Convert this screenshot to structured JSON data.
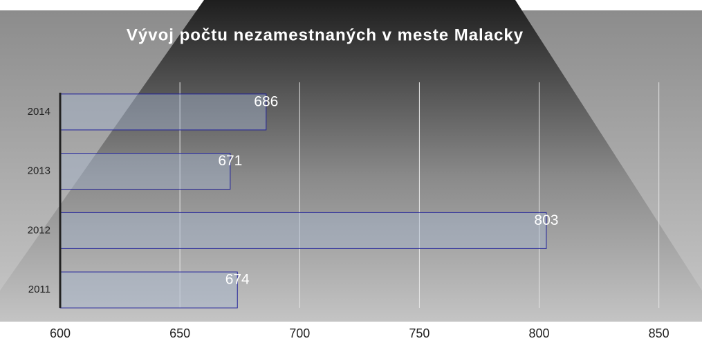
{
  "chart_data": {
    "type": "bar",
    "orientation": "horizontal",
    "title": "Vývoj počtu nezamestnaných v meste Malacky",
    "categories": [
      "2011",
      "2012",
      "2013",
      "2014"
    ],
    "values": [
      674,
      803,
      671,
      686
    ],
    "color": "#a3b4cc",
    "xlim": [
      600,
      868
    ],
    "xticks": [
      600,
      650,
      700,
      750,
      800,
      850
    ],
    "grid": true
  }
}
